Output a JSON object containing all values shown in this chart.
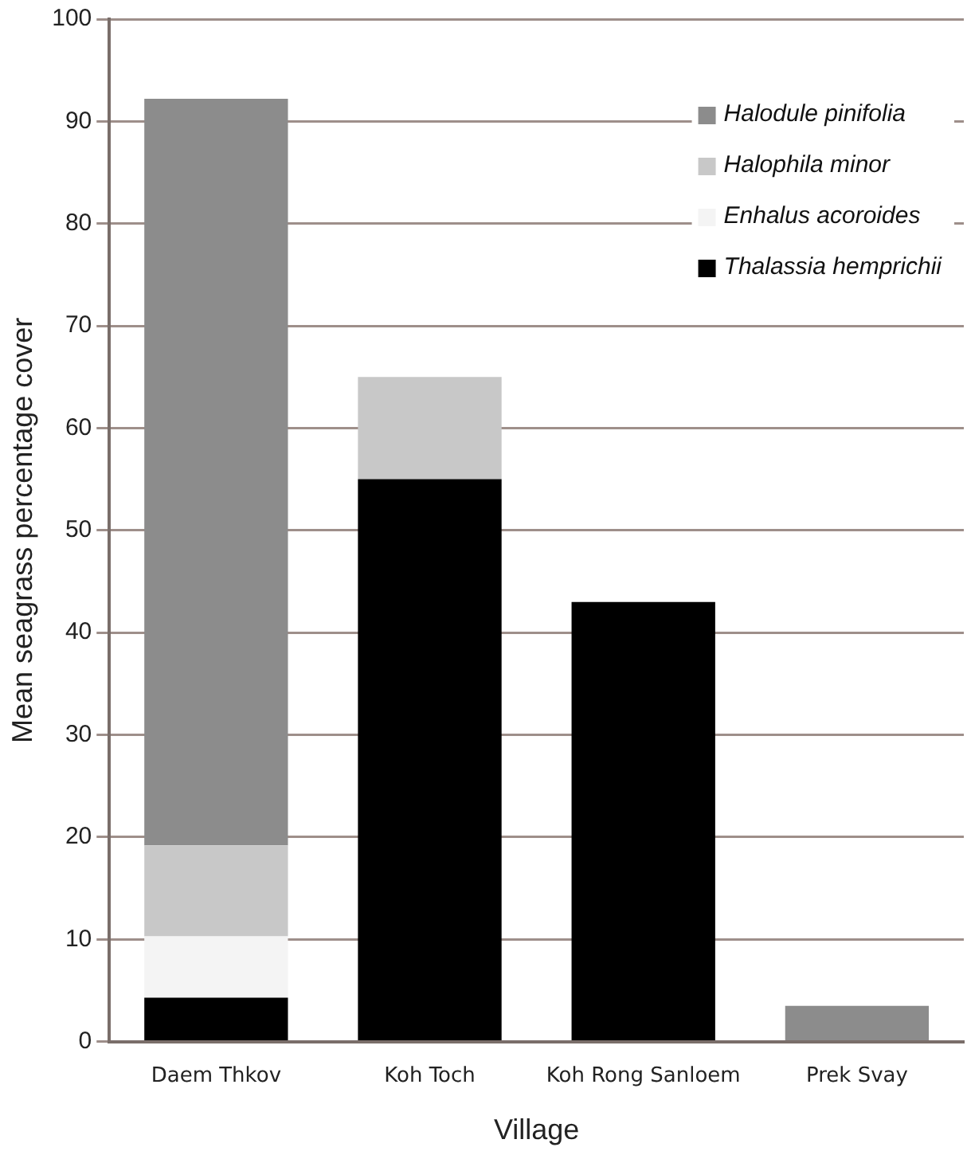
{
  "chart_data": {
    "type": "bar",
    "stacked": true,
    "xlabel": "Village",
    "ylabel": "Mean seagrass percentage cover",
    "categories": [
      "Daem Thkov",
      "Koh Toch",
      "Koh Rong Sanloem",
      "Prek Svay"
    ],
    "series": [
      {
        "name": "Thalassia hemprichii",
        "color": "#000000",
        "values": [
          4.3,
          55,
          43,
          0
        ]
      },
      {
        "name": "Enhalus acoroides",
        "color": "#f4f4f4",
        "values": [
          6,
          0,
          0,
          0
        ]
      },
      {
        "name": "Halophila minor",
        "color": "#c8c8c8",
        "values": [
          8.9,
          10,
          0,
          0
        ]
      },
      {
        "name": "Halodule pinifolia",
        "color": "#8c8c8c",
        "values": [
          73,
          0,
          0,
          3.5
        ]
      }
    ],
    "ylim": [
      0,
      100
    ],
    "yticks": [
      0,
      10,
      20,
      30,
      40,
      50,
      60,
      70,
      80,
      90,
      100
    ],
    "grid": "y",
    "legend": "top right"
  }
}
